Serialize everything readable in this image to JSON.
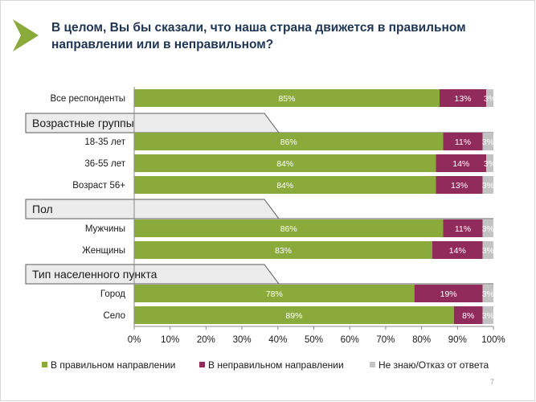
{
  "slide": {
    "title": "В целом, Вы бы сказали, что наша страна движется в правильном направлении или в неправильном?",
    "page_number": "7"
  },
  "chart_data": {
    "type": "bar",
    "orientation": "horizontal",
    "stacked": true,
    "xlim": [
      0,
      100
    ],
    "x_ticks": [
      "0%",
      "10%",
      "20%",
      "30%",
      "40%",
      "50%",
      "60%",
      "70%",
      "80%",
      "90%",
      "100%"
    ],
    "legend_position": "bottom",
    "series": [
      {
        "name": "В правильном направлении",
        "color": "#8aab3b"
      },
      {
        "name": "В неправильном направлении",
        "color": "#912b5c"
      },
      {
        "name": "Не знаю/Отказ от ответа",
        "color": "#c3c3c3"
      }
    ],
    "rows": [
      {
        "kind": "bar",
        "label": "Все респонденты",
        "values": [
          85,
          13,
          3
        ]
      },
      {
        "kind": "group",
        "label": "Возрастные группы"
      },
      {
        "kind": "bar",
        "label": "18-35 лет",
        "values": [
          86,
          11,
          3
        ]
      },
      {
        "kind": "bar",
        "label": "36-55 лет",
        "values": [
          84,
          14,
          3
        ]
      },
      {
        "kind": "bar",
        "label": "Возраст 56+",
        "values": [
          84,
          13,
          3
        ]
      },
      {
        "kind": "group",
        "label": "Пол"
      },
      {
        "kind": "bar",
        "label": "Мужчины",
        "values": [
          86,
          11,
          3
        ]
      },
      {
        "kind": "bar",
        "label": "Женщины",
        "values": [
          83,
          14,
          3
        ]
      },
      {
        "kind": "group",
        "label": "Тип населенного пункта"
      },
      {
        "kind": "bar",
        "label": "Город",
        "values": [
          78,
          19,
          3
        ]
      },
      {
        "kind": "bar",
        "label": "Село",
        "values": [
          89,
          8,
          3
        ]
      }
    ]
  }
}
